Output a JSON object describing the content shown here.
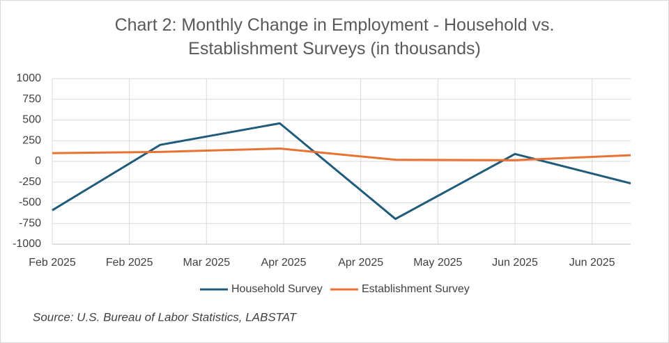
{
  "chart_data": {
    "type": "line",
    "title": "Chart 2: Monthly Change in Employment - Household vs. Establishment Surveys (in thousands)",
    "x": [
      "2025-02",
      "2025-03",
      "2025-04",
      "2025-05",
      "2025-06",
      "2025-07"
    ],
    "series": [
      {
        "name": "Household Survey",
        "color": "#1f5b7a",
        "values": [
          -590,
          200,
          460,
          -695,
          90,
          -265
        ]
      },
      {
        "name": "Establishment Survey",
        "color": "#e97132",
        "values": [
          100,
          115,
          155,
          20,
          15,
          75
        ]
      }
    ],
    "xlim": [
      "2025-02-01",
      "2025-07-01"
    ],
    "xticks": [
      {
        "value": "2025-02-01",
        "label": "Feb 2025"
      },
      {
        "value": "2025-02-21",
        "label": "Feb 2025"
      },
      {
        "value": "2025-03-13",
        "label": "Mar 2025"
      },
      {
        "value": "2025-04-02",
        "label": "Apr 2025"
      },
      {
        "value": "2025-04-22",
        "label": "Apr 2025"
      },
      {
        "value": "2025-05-12",
        "label": "May 2025"
      },
      {
        "value": "2025-06-01",
        "label": "Jun 2025"
      },
      {
        "value": "2025-06-21",
        "label": "Jun 2025"
      }
    ],
    "ylim": [
      -1000,
      1000
    ],
    "yticks": [
      -1000,
      -750,
      -500,
      -250,
      0,
      250,
      500,
      750,
      1000
    ],
    "grid": true,
    "legend": "bottom",
    "source": "Source: U.S. Bureau of Labor Statistics, LABSTAT"
  }
}
